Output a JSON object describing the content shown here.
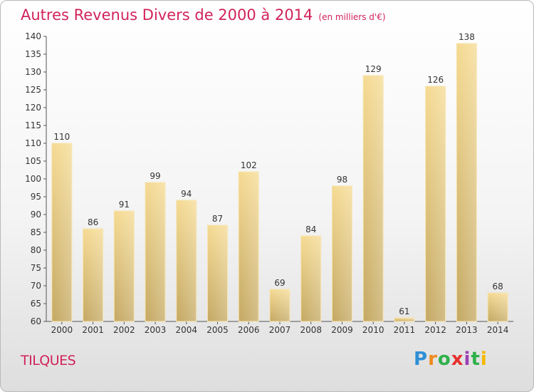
{
  "header": {
    "title": "Autres Revenus Divers de 2000 à 2014",
    "subtitle": "(en milliers d'€)"
  },
  "footer": {
    "town": "TILQUES",
    "logo_letters": [
      "P",
      "r",
      "o",
      "x",
      "i",
      "t",
      "i"
    ],
    "logo_colors": [
      "#2f8fd6",
      "#f08a1c",
      "#2fb04a",
      "#e8302e",
      "#9b3fb5",
      "#2fb04a",
      "#f5b800"
    ]
  },
  "chart_data": {
    "type": "bar",
    "title": "Autres Revenus Divers de 2000 à 2014",
    "subtitle": "(en milliers d'€)",
    "categories": [
      "2000",
      "2001",
      "2002",
      "2003",
      "2004",
      "2005",
      "2006",
      "2007",
      "2008",
      "2009",
      "2010",
      "2011",
      "2012",
      "2013",
      "2014"
    ],
    "values": [
      110,
      86,
      91,
      99,
      94,
      87,
      102,
      69,
      84,
      98,
      129,
      61,
      126,
      138,
      68
    ],
    "ylim": [
      60,
      140
    ],
    "yticks": [
      60,
      65,
      70,
      75,
      80,
      85,
      90,
      95,
      100,
      105,
      110,
      115,
      120,
      125,
      130,
      135,
      140
    ],
    "grid": false,
    "bar_color": "#e8c97a"
  }
}
